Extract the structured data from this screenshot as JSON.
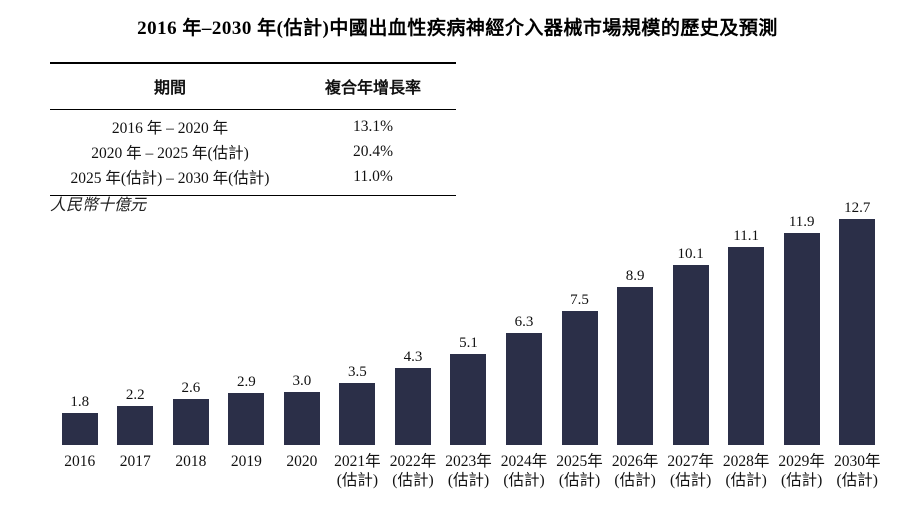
{
  "title": "2016 年–2030 年(估計)中國出血性疾病神經介入器械市場規模的歷史及預測",
  "unit_label": "人民幣十億元",
  "table": {
    "headers": [
      "期間",
      "複合年增長率"
    ],
    "rows": [
      [
        "2016 年 – 2020 年",
        "13.1%"
      ],
      [
        "2020 年 – 2025 年(估計)",
        "20.4%"
      ],
      [
        "2025 年(估計) – 2030 年(估計)",
        "11.0%"
      ]
    ]
  },
  "chart_data": {
    "type": "bar",
    "title": "2016 年–2030 年(估計)中國出血性疾病神經介入器械市場規模的歷史及預測",
    "ylabel": "人民幣十億元",
    "xlabel": "",
    "ylim": [
      0,
      13
    ],
    "grid": false,
    "legend": "none",
    "bar_color": "#2b2f48",
    "categories": [
      {
        "line1": "2016",
        "line2": ""
      },
      {
        "line1": "2017",
        "line2": ""
      },
      {
        "line1": "2018",
        "line2": ""
      },
      {
        "line1": "2019",
        "line2": ""
      },
      {
        "line1": "2020",
        "line2": ""
      },
      {
        "line1": "2021年",
        "line2": "(估計)"
      },
      {
        "line1": "2022年",
        "line2": "(估計)"
      },
      {
        "line1": "2023年",
        "line2": "(估計)"
      },
      {
        "line1": "2024年",
        "line2": "(估計)"
      },
      {
        "line1": "2025年",
        "line2": "(估計)"
      },
      {
        "line1": "2026年",
        "line2": "(估計)"
      },
      {
        "line1": "2027年",
        "line2": "(估計)"
      },
      {
        "line1": "2028年",
        "line2": "(估計)"
      },
      {
        "line1": "2029年",
        "line2": "(估計)"
      },
      {
        "line1": "2030年",
        "line2": "(估計)"
      }
    ],
    "values": [
      1.8,
      2.2,
      2.6,
      2.9,
      3.0,
      3.5,
      4.3,
      5.1,
      6.3,
      7.5,
      8.9,
      10.1,
      11.1,
      11.9,
      12.7
    ],
    "value_labels": [
      "1.8",
      "2.2",
      "2.6",
      "2.9",
      "3.0",
      "3.5",
      "4.3",
      "5.1",
      "6.3",
      "7.5",
      "8.9",
      "10.1",
      "11.1",
      "11.9",
      "12.7"
    ]
  }
}
